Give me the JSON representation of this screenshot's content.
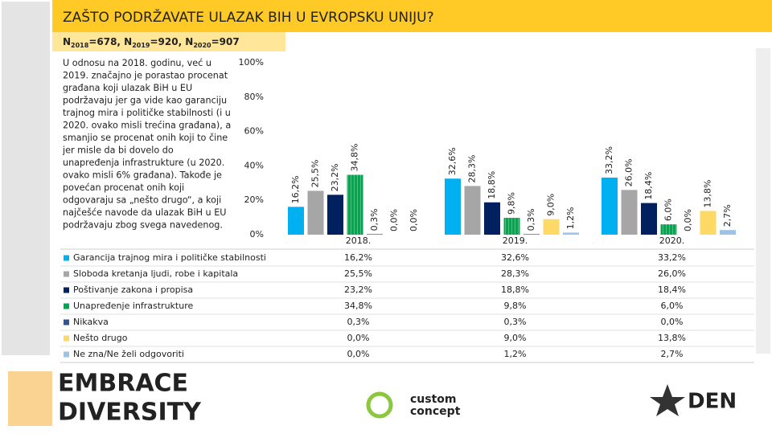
{
  "chart_data": {
    "type": "bar",
    "title": "ZAŠTO PODRŽAVATE ULAZAK BIH U EVROPSKU UNIJU?",
    "subtitle": [
      "N",
      "2018",
      "=678, N",
      "2019",
      "=920, N",
      "2020",
      "=907"
    ],
    "note": [
      "U odnosu na 2018. godinu, već u",
      "2019. značajno je porastao procenat",
      "građana koji ulazak BiH u EU",
      "podržavaju jer ga vide kao garanciju",
      "trajnog mira i političke stabilnosti (i u",
      "2020. ovako misli trećina građana), a",
      "smanjio se procenat onih koji to čine",
      "jer misle da bi dovelo do",
      "unapređenja infrastrukture (u 2020.",
      "ovako misli 6% građana). Takođe je",
      "povećan procenat onih koji",
      "odgovaraju sa „nešto drugo“, a koji",
      "najčešće navode da ulazak BiH u EU",
      "podržavaju zbog svega navedenog."
    ],
    "categories": [
      "2018.",
      "2019.",
      "2020."
    ],
    "ylim": [
      0,
      100
    ],
    "yticks": [
      {
        "value": 0,
        "label": "0%"
      },
      {
        "value": 20,
        "label": "20%"
      },
      {
        "value": 40,
        "label": "40%"
      },
      {
        "value": 60,
        "label": "60%"
      },
      {
        "value": 80,
        "label": "80%"
      },
      {
        "value": 100,
        "label": "100%"
      }
    ],
    "series": [
      {
        "name": "Garancija trajnog mira i političke stabilnosti",
        "color": "#00b0f0",
        "values": [
          16.2,
          32.6,
          33.2
        ],
        "value_labels": [
          "16,2%",
          "32,6%",
          "33,2%"
        ]
      },
      {
        "name": "Sloboda kretanja ljudi, robe i kapitala",
        "color": "#a6a6a6",
        "values": [
          25.5,
          28.3,
          26.0
        ],
        "value_labels": [
          "25,5%",
          "28,3%",
          "26,0%"
        ]
      },
      {
        "name": "Poštivanje zakona i propisa",
        "color": "#002060",
        "values": [
          23.2,
          18.8,
          18.4
        ],
        "value_labels": [
          "23,2%",
          "18,8%",
          "18,4%"
        ]
      },
      {
        "name": "Unapređenje infrastrukture",
        "color": "#00a651",
        "values": [
          34.8,
          9.8,
          6.0
        ],
        "value_labels": [
          "34,8%",
          "9,8%",
          "6,0%"
        ]
      },
      {
        "name": "Nikakva",
        "color": "#2f5597",
        "values": [
          0.3,
          0.3,
          0.0
        ],
        "value_labels": [
          "0,3%",
          "0,3%",
          "0,0%"
        ]
      },
      {
        "name": "Nešto drugo",
        "color": "#ffd966",
        "values": [
          0.0,
          9.0,
          13.8
        ],
        "value_labels": [
          "0,0%",
          "9,0%",
          "13,8%"
        ]
      },
      {
        "name": "Ne zna/Ne želi odgovoriti",
        "color": "#9dc3e6",
        "values": [
          0.0,
          1.2,
          2.7
        ],
        "value_labels": [
          "0,0%",
          "1,2%",
          "2,7%"
        ]
      }
    ],
    "logos": [
      "EMBRACE",
      "DIVERSITY",
      "custom",
      "concept",
      "DEN"
    ]
  }
}
